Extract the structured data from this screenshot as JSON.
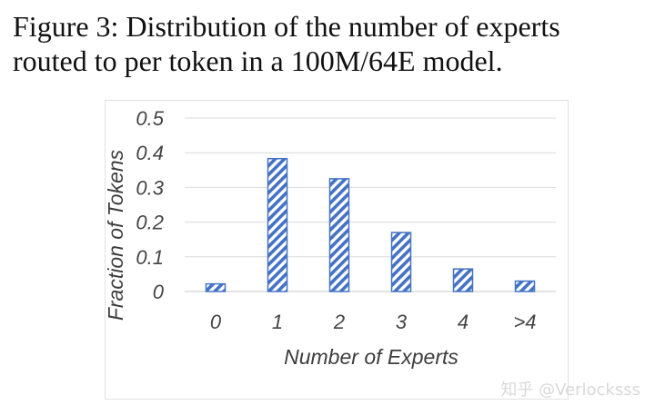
{
  "figure": {
    "caption_line1": "Figure 3:  Distribution of the number of experts",
    "caption_line2": "routed to per token in a 100M/64E model."
  },
  "chart_data": {
    "type": "bar",
    "title": "",
    "categories": [
      "0",
      "1",
      "2",
      "3",
      "4",
      ">4"
    ],
    "values": [
      0.022,
      0.383,
      0.325,
      0.17,
      0.065,
      0.03
    ],
    "xlabel": "Number of Experts",
    "ylabel": "Fraction of Tokens",
    "ylim": [
      0,
      0.5
    ],
    "yticks": [
      0,
      0.1,
      0.2,
      0.3,
      0.4,
      0.5
    ],
    "ytick_labels": [
      "0",
      "0.1",
      "0.2",
      "0.3",
      "0.4",
      "0.5"
    ],
    "grid": true,
    "legend": "none",
    "bar_pattern": "diagonal-hatch",
    "bar_color": "#4472c4"
  },
  "watermark": {
    "text": "知乎 @Verlocksss"
  }
}
